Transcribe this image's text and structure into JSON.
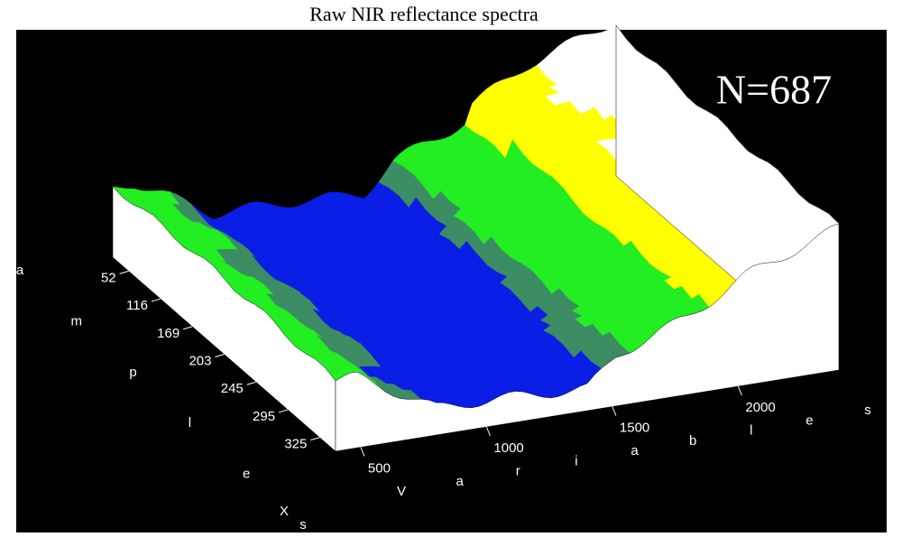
{
  "chart_data": {
    "type": "surface",
    "title": "Raw NIR reflectance spectra",
    "annotation": "N=687",
    "x_label": "Variables",
    "y_label": "amples",
    "y_label_extra": "X",
    "xlim": [
      400,
      2400
    ],
    "xticks": [
      500,
      1000,
      1500,
      2000
    ],
    "sample_ticks": [
      52,
      116,
      169,
      203,
      245,
      295,
      325
    ]
  }
}
